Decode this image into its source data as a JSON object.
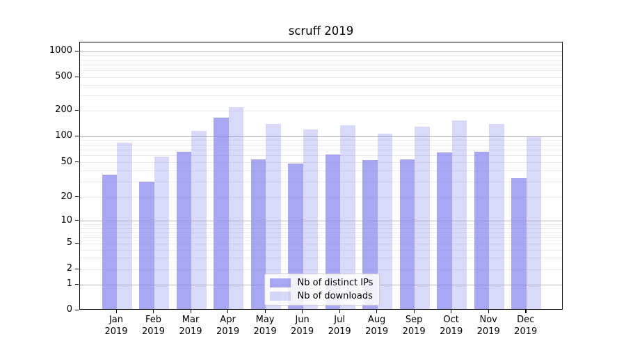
{
  "title": "scruff 2019",
  "colors": {
    "bar_rgb": "131,131,236",
    "ips_alpha": 0.7,
    "downloads_alpha": 0.31,
    "major_grid": "#b4b4b4",
    "minor_grid": "#e9e9e9",
    "spine": "#000000",
    "background": "#ffffff"
  },
  "legend": {
    "items": [
      {
        "label": "Nb of distinct IPs",
        "series": "ips"
      },
      {
        "label": "Nb of downloads",
        "series": "downloads"
      }
    ]
  },
  "chart_data": {
    "type": "bar",
    "title": "scruff 2019",
    "categories": [
      "Jan 2019",
      "Feb 2019",
      "Mar 2019",
      "Apr 2019",
      "May 2019",
      "Jun 2019",
      "Jul 2019",
      "Aug 2019",
      "Sep 2019",
      "Oct 2019",
      "Nov 2019",
      "Dec 2019"
    ],
    "x_months": [
      "Jan",
      "Feb",
      "Mar",
      "Apr",
      "May",
      "Jun",
      "Jul",
      "Aug",
      "Sep",
      "Oct",
      "Nov",
      "Dec"
    ],
    "x_year": "2019",
    "series": [
      {
        "name": "Nb of distinct IPs",
        "values": [
          35,
          29,
          65,
          160,
          53,
          47,
          60,
          52,
          53,
          63,
          64,
          32
        ]
      },
      {
        "name": "Nb of downloads",
        "values": [
          82,
          57,
          113,
          212,
          135,
          116,
          131,
          104,
          125,
          149,
          135,
          97
        ]
      }
    ],
    "yticks": [
      0,
      1,
      2,
      5,
      10,
      20,
      50,
      100,
      200,
      500,
      1000
    ],
    "ytick_labels": [
      "0",
      "1",
      "2",
      "5",
      "10",
      "20",
      "50",
      "100",
      "200",
      "500",
      "1000"
    ],
    "yscale": "symlog-like (log decades with compressed 0-1 region)",
    "ylim": [
      0,
      1290
    ],
    "xlabel": "",
    "ylabel": "",
    "grid": "horizontal, major at 1/10/100/1000, minor at 2-9 per decade",
    "legend_position": "lower center"
  }
}
